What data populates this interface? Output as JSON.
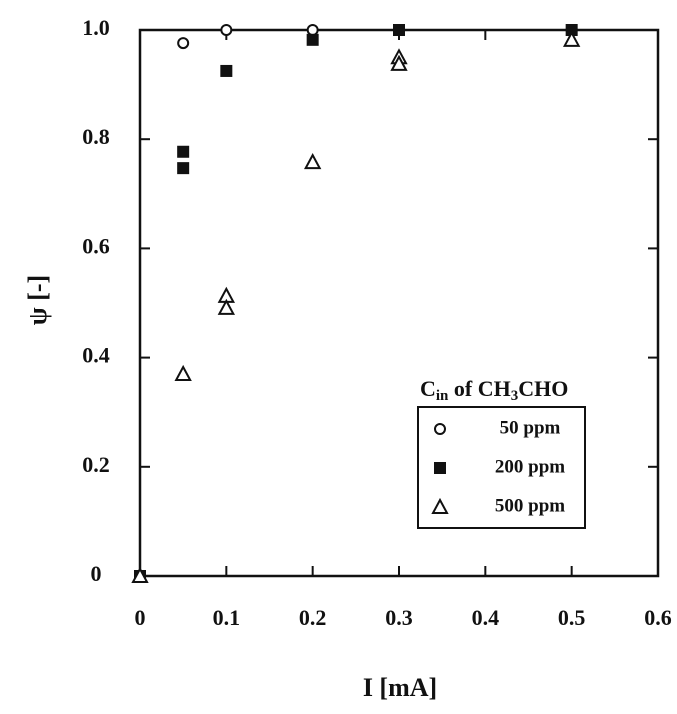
{
  "chart_data": {
    "type": "scatter",
    "x_label": "I [mA]",
    "y_label": "ψ [-]",
    "legend_title": [
      "C",
      "in",
      " of CH",
      "3",
      "CHO"
    ],
    "series": [
      {
        "name": "50 ppm",
        "marker": "circle-open",
        "color": "#111111",
        "x": [
          0,
          0.05,
          0.1,
          0.2,
          0.3,
          0.5
        ],
        "values": [
          0,
          0.976,
          1.0,
          1.0,
          1.0,
          1.0
        ]
      },
      {
        "name": "200 ppm",
        "marker": "square-filled",
        "color": "#111111",
        "x": [
          0,
          0.05,
          0.05,
          0.1,
          0.2,
          0.3,
          0.5
        ],
        "values": [
          0,
          0.777,
          0.747,
          0.925,
          0.982,
          1.0,
          1.0
        ]
      },
      {
        "name": "500 ppm",
        "marker": "triangle-open",
        "color": "#111111",
        "x": [
          0,
          0.05,
          0.1,
          0.1,
          0.2,
          0.3,
          0.3,
          0.5
        ],
        "values": [
          0,
          0.37,
          0.513,
          0.491,
          0.758,
          0.95,
          0.938,
          0.982
        ]
      }
    ],
    "xlim": [
      0,
      0.6
    ],
    "ylim": [
      0,
      1.0
    ],
    "xticks": [
      0,
      0.1,
      0.2,
      0.3,
      0.4,
      0.5,
      0.6
    ],
    "yticks": [
      0,
      0.2,
      0.4,
      0.6,
      0.8,
      {
        "value": 1.0,
        "label": "1.0"
      }
    ],
    "grid": false,
    "legend_position": "lower-right"
  }
}
